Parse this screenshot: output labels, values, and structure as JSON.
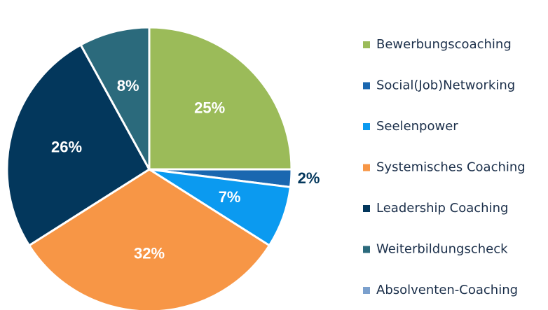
{
  "chart_data": {
    "type": "pie",
    "categories": [
      "Bewerbungscoaching",
      "Social(Job)Networking",
      "Seelenpower",
      "Systemisches Coaching",
      "Leadership Coaching",
      "Weiterbildungscheck",
      "Absolventen-Coaching"
    ],
    "values": [
      25,
      2,
      7,
      32,
      26,
      8,
      0
    ],
    "value_labels": [
      "25%",
      "2%",
      "7%",
      "32%",
      "26%",
      "8%",
      null
    ],
    "colors": [
      "#9bbb59",
      "#1a67b0",
      "#0b9af0",
      "#f79646",
      "#03375c",
      "#2b6a7c",
      "#7ba0cd"
    ],
    "legend": "right"
  }
}
